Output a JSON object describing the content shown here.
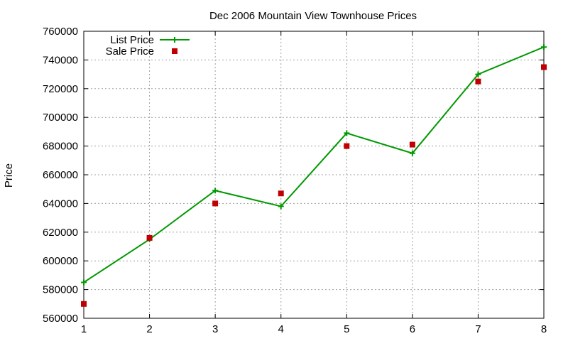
{
  "chart_data": {
    "type": "line",
    "title": "Dec 2006 Mountain View Townhouse Prices",
    "xlabel": "",
    "ylabel": "Price",
    "x": [
      1,
      2,
      3,
      4,
      5,
      6,
      7,
      8
    ],
    "xlim": [
      1,
      8
    ],
    "ylim": [
      560000,
      760000
    ],
    "x_ticks": [
      "1",
      "2",
      "3",
      "4",
      "5",
      "6",
      "7",
      "8"
    ],
    "y_ticks": [
      "560000",
      "580000",
      "600000",
      "620000",
      "640000",
      "660000",
      "680000",
      "700000",
      "720000",
      "740000",
      "760000"
    ],
    "grid": true,
    "legend_position": "top-left",
    "series": [
      {
        "name": "List Price",
        "style": "line+plus",
        "color": "#009900",
        "values": [
          585000,
          615000,
          649000,
          638000,
          689000,
          675000,
          730000,
          749000
        ]
      },
      {
        "name": "Sale Price",
        "style": "square-points",
        "color": "#c00000",
        "values": [
          570000,
          616000,
          640000,
          647000,
          680000,
          681000,
          725000,
          735000
        ]
      }
    ]
  }
}
